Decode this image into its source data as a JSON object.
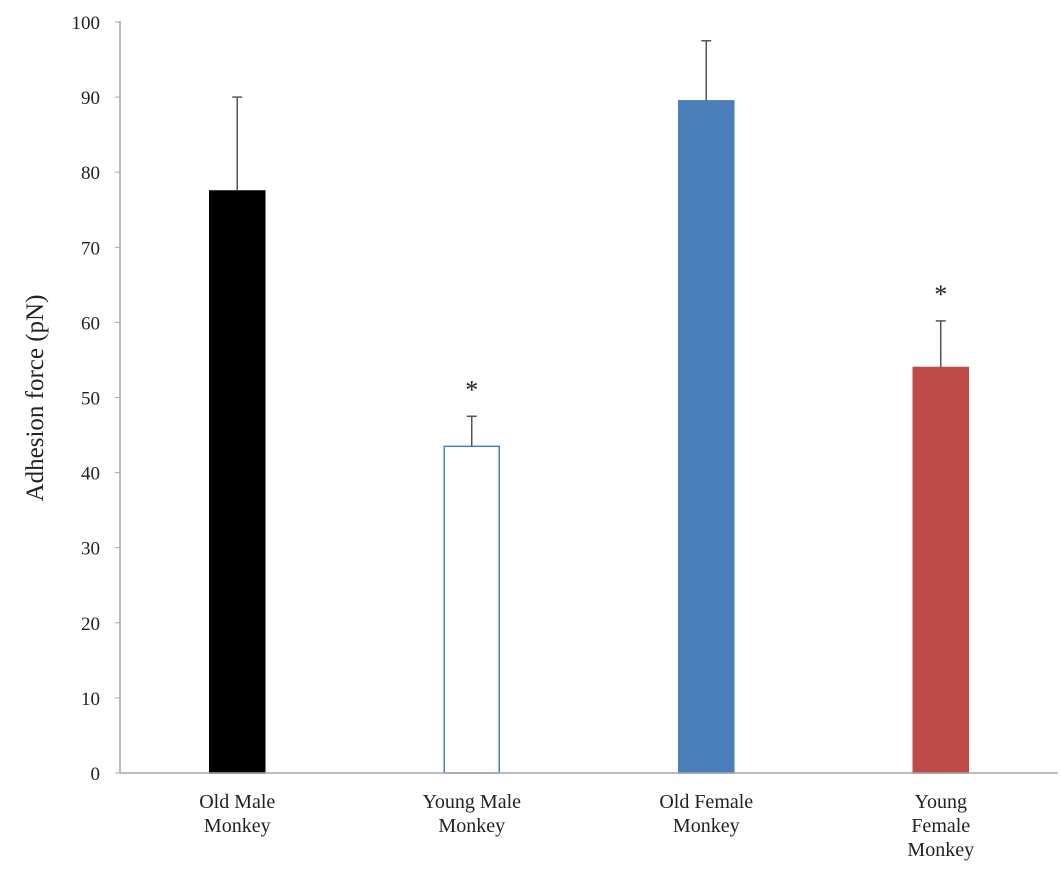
{
  "chart_data": {
    "type": "bar",
    "title": "",
    "xlabel": "",
    "ylabel": "Adhesion force (pN)",
    "ylim": [
      0,
      100
    ],
    "yticks": [
      0,
      10,
      20,
      30,
      40,
      50,
      60,
      70,
      80,
      90,
      100
    ],
    "grid": false,
    "categories": [
      [
        "Old Male",
        "Monkey"
      ],
      [
        "Young Male",
        "Monkey"
      ],
      [
        "Old Female",
        "Monkey"
      ],
      [
        "Young",
        "Female",
        "Monkey"
      ]
    ],
    "values": [
      77.5,
      43.5,
      89.5,
      54
    ],
    "error_upper": [
      12.5,
      4,
      8,
      6.2
    ],
    "significance": [
      "",
      "*",
      "",
      "*"
    ],
    "colors": {
      "fills": [
        "#000000",
        "#ffffff",
        "#4a7ebb",
        "#be4b48"
      ],
      "strokes": [
        "#000000",
        "#4a7ebb",
        "#4a7ebb",
        "#be4b48"
      ],
      "axis": "#a6a6a6",
      "error_bar": "#555555"
    }
  }
}
